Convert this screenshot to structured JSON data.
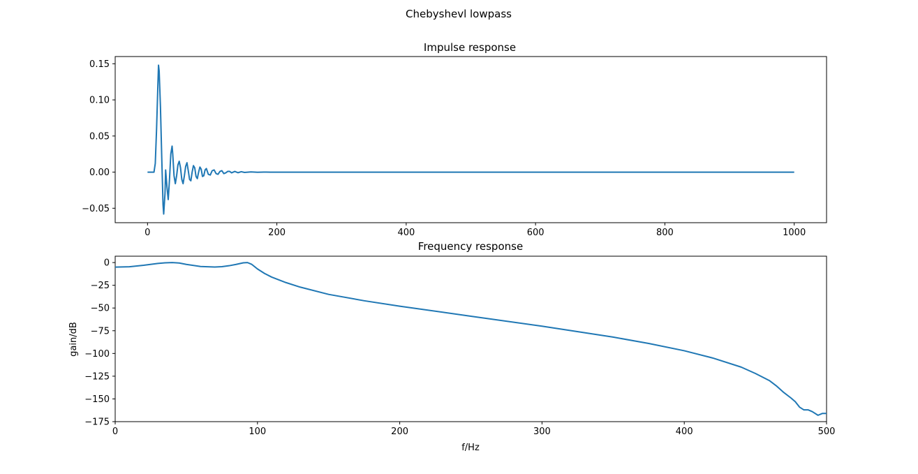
{
  "figure": {
    "suptitle": "Chebyshevl lowpass"
  },
  "colors": {
    "line": "#1f77b4",
    "axes": "#000000",
    "background": "#ffffff"
  },
  "chart_data": [
    {
      "type": "line",
      "title": "Impulse response",
      "xlabel": "",
      "ylabel": "",
      "xlim": [
        -50,
        1050
      ],
      "ylim": [
        -0.07,
        0.16
      ],
      "grid": false,
      "xticks": [
        0,
        200,
        400,
        600,
        800,
        1000
      ],
      "xtick_labels": [
        "0",
        "200",
        "400",
        "600",
        "800",
        "1000"
      ],
      "yticks": [
        -0.05,
        0.0,
        0.05,
        0.1,
        0.15
      ],
      "ytick_labels": [
        "−0.05",
        "0.00",
        "0.05",
        "0.10",
        "0.15"
      ],
      "series": [
        {
          "x": [
            0,
            10,
            12,
            14,
            16,
            17,
            18,
            20,
            22,
            24,
            25,
            27,
            28,
            30,
            32,
            34,
            36,
            38,
            39,
            41,
            43,
            45,
            47,
            49,
            51,
            53,
            55,
            57,
            59,
            61,
            63,
            65,
            67,
            69,
            71,
            73,
            75,
            77,
            79,
            81,
            83,
            85,
            87,
            89,
            91,
            94,
            97,
            100,
            103,
            106,
            109,
            112,
            115,
            118,
            121,
            124,
            127,
            130,
            135,
            140,
            145,
            150,
            160,
            170,
            180,
            190,
            200,
            300,
            400,
            500,
            600,
            700,
            800,
            900,
            1000
          ],
          "y": [
            0.0,
            0.0,
            0.012,
            0.06,
            0.12,
            0.148,
            0.14,
            0.09,
            0.02,
            -0.045,
            -0.058,
            -0.03,
            0.003,
            -0.02,
            -0.038,
            -0.01,
            0.025,
            0.036,
            0.025,
            -0.005,
            -0.016,
            -0.005,
            0.01,
            0.015,
            0.006,
            -0.01,
            -0.016,
            -0.005,
            0.008,
            0.013,
            0.002,
            -0.01,
            -0.012,
            0.0,
            0.009,
            0.006,
            -0.006,
            -0.009,
            0.0,
            0.007,
            0.004,
            -0.006,
            -0.005,
            0.003,
            0.005,
            -0.003,
            -0.004,
            0.002,
            0.003,
            -0.002,
            -0.003,
            0.001,
            0.002,
            -0.002,
            -0.001,
            0.001,
            0.001,
            -0.001,
            0.001,
            -0.0008,
            0.0006,
            -0.0004,
            0.0003,
            -0.0002,
            0.0001,
            0.0,
            0.0,
            0.0,
            0.0,
            0.0,
            0.0,
            0.0,
            0.0,
            0.0,
            0.0
          ]
        }
      ]
    },
    {
      "type": "line",
      "title": "Frequency response",
      "xlabel": "f/Hz",
      "ylabel": "gain/dB",
      "xlim": [
        0,
        500
      ],
      "ylim": [
        -175,
        7
      ],
      "grid": false,
      "xticks": [
        0,
        100,
        200,
        300,
        400,
        500
      ],
      "xtick_labels": [
        "0",
        "100",
        "200",
        "300",
        "400",
        "500"
      ],
      "yticks": [
        0,
        -25,
        -50,
        -75,
        -100,
        -125,
        -150,
        -175
      ],
      "ytick_labels": [
        "0",
        "−25",
        "−50",
        "−75",
        "−100",
        "−125",
        "−150",
        "−175"
      ],
      "series": [
        {
          "x": [
            0,
            10,
            20,
            30,
            35,
            40,
            45,
            50,
            60,
            70,
            75,
            80,
            85,
            90,
            93,
            96,
            100,
            105,
            110,
            120,
            130,
            150,
            175,
            200,
            250,
            300,
            350,
            375,
            400,
            420,
            440,
            450,
            460,
            465,
            470,
            475,
            478,
            481,
            484,
            487,
            490,
            494,
            497,
            500
          ],
          "y": [
            -5,
            -4.6,
            -3,
            -1,
            -0.3,
            0,
            -0.5,
            -2,
            -4.3,
            -4.9,
            -4.5,
            -3.5,
            -2,
            -0.3,
            0,
            -2,
            -7,
            -12,
            -16,
            -22,
            -27,
            -35,
            -42,
            -48,
            -59,
            -70,
            -82,
            -89,
            -97,
            -105,
            -115,
            -122,
            -130,
            -136,
            -143,
            -149,
            -153,
            -159,
            -162,
            -162,
            -164,
            -168,
            -166,
            -166
          ]
        }
      ]
    }
  ]
}
